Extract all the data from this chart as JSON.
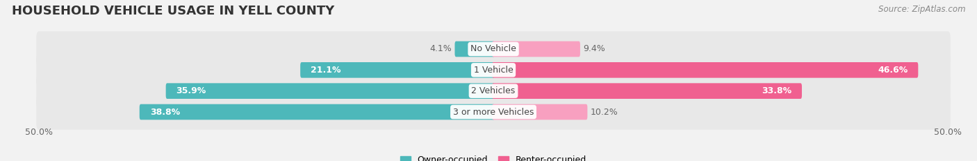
{
  "title": "HOUSEHOLD VEHICLE USAGE IN YELL COUNTY",
  "source": "Source: ZipAtlas.com",
  "categories": [
    "No Vehicle",
    "1 Vehicle",
    "2 Vehicles",
    "3 or more Vehicles"
  ],
  "owner_values": [
    4.1,
    21.1,
    35.9,
    38.8
  ],
  "renter_values": [
    9.4,
    46.6,
    33.8,
    10.2
  ],
  "owner_color": "#4db8ba",
  "renter_color": "#f06090",
  "renter_light_color": "#f8a0c0",
  "owner_label": "Owner-occupied",
  "renter_label": "Renter-occupied",
  "axis_limit": 50.0,
  "x_tick_labels": [
    "50.0%",
    "50.0%"
  ],
  "background_color": "#f2f2f2",
  "band_color": "#e8e8e8",
  "title_fontsize": 13,
  "source_fontsize": 8.5,
  "label_fontsize": 9,
  "category_fontsize": 9
}
